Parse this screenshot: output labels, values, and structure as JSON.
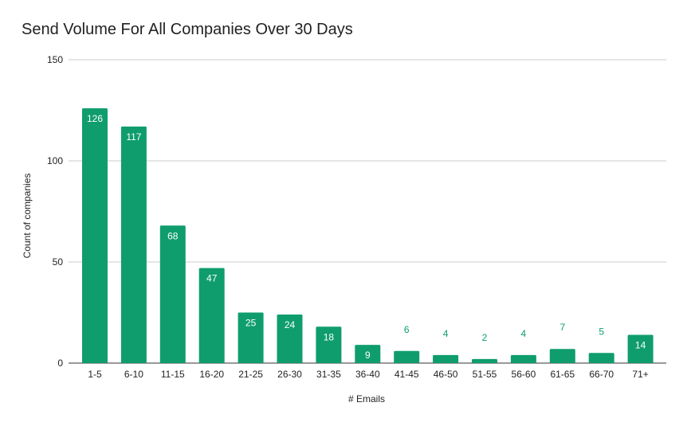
{
  "chart_data": {
    "type": "bar",
    "title": "Send Volume For All Companies Over 30 Days",
    "xlabel": "# Emails",
    "ylabel": "Count of companies",
    "categories": [
      "1-5",
      "6-10",
      "11-15",
      "16-20",
      "21-25",
      "26-30",
      "31-35",
      "36-40",
      "41-45",
      "46-50",
      "51-55",
      "56-60",
      "61-65",
      "66-70",
      "71+"
    ],
    "values": [
      126,
      117,
      68,
      47,
      25,
      24,
      18,
      9,
      6,
      4,
      2,
      4,
      7,
      5,
      14
    ],
    "ylim": [
      0,
      150
    ],
    "yticks": [
      0,
      50,
      100,
      150
    ],
    "grid": true,
    "legend": "none",
    "colors": {
      "bar": "#0f9d6e",
      "label_inside": "#ffffff",
      "label_outside": "#0f9d6e",
      "grid": "#cccccc",
      "baseline": "#333333"
    }
  }
}
